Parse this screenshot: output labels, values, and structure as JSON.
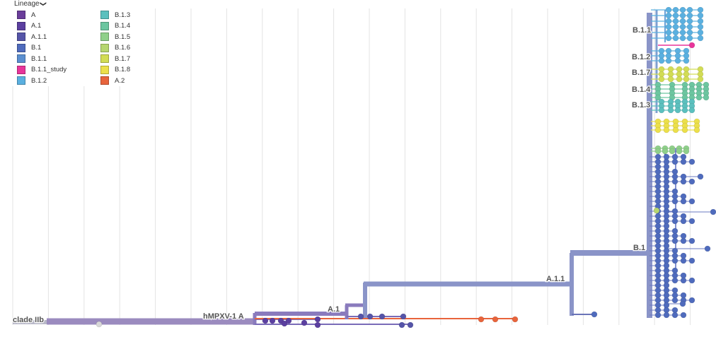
{
  "legend": {
    "title": "Lineage",
    "toggle_icon": "chevron-down-icon",
    "items": [
      {
        "label": "A",
        "color": "#6a3d9a"
      },
      {
        "label": "A.1",
        "color": "#5b3fa0"
      },
      {
        "label": "A.1.1",
        "color": "#5554a8"
      },
      {
        "label": "B.1",
        "color": "#4f6bbd"
      },
      {
        "label": "B.1.1",
        "color": "#5b8fd0"
      },
      {
        "label": "B.1.1_study",
        "color": "#e8359a"
      },
      {
        "label": "B.1.2",
        "color": "#5ab0e0"
      },
      {
        "label": "B.1.3",
        "color": "#5bc0be"
      },
      {
        "label": "B.1.4",
        "color": "#6cc6a0"
      },
      {
        "label": "B.1.5",
        "color": "#8fd08a"
      },
      {
        "label": "B.1.6",
        "color": "#b6d670"
      },
      {
        "label": "B.1.7",
        "color": "#d2dc55"
      },
      {
        "label": "B.1.8",
        "color": "#ece04a"
      },
      {
        "label": "A.2",
        "color": "#e8643c"
      }
    ]
  },
  "clade_labels": [
    "clade IIb",
    "hMPXV-1 A",
    "A.1",
    "A.1.1",
    "B.1",
    "B.1.1",
    "B.1.2",
    "B.1.7",
    "B.1.4",
    "B.1.3"
  ],
  "colors": {
    "grid": "#e3e3e3",
    "root_branch": "#9b8bbf",
    "a_branch": "#8a7bbd",
    "backbone": "#8a94c8",
    "label_text": "#555555"
  }
}
